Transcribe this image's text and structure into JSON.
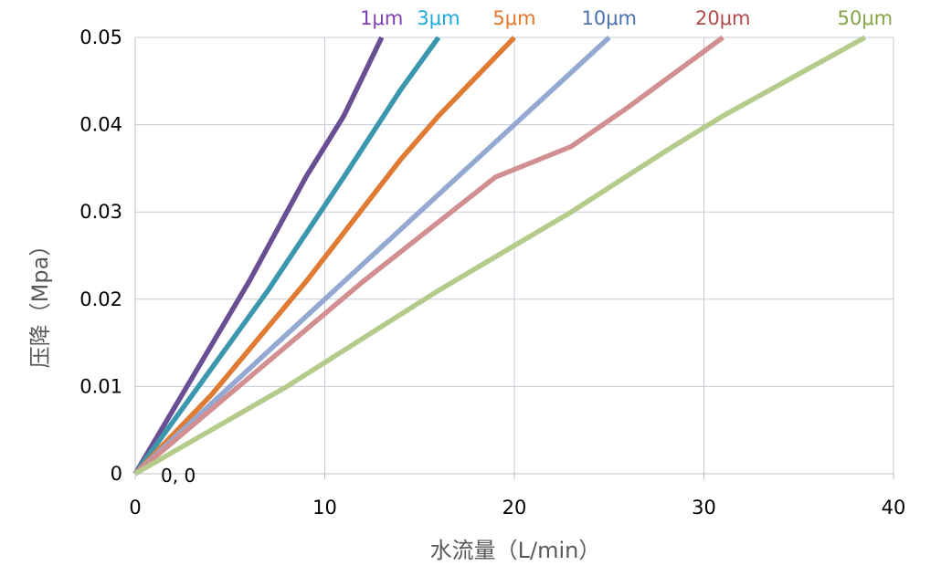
{
  "chart_data": {
    "type": "line",
    "title": "",
    "xlabel": "水流量（L/min）",
    "ylabel": "压降（Mpa）",
    "xlim": [
      0,
      40
    ],
    "ylim": [
      0,
      0.05
    ],
    "x_ticks": [
      "0",
      "10",
      "20",
      "30",
      "40"
    ],
    "y_ticks": [
      "0",
      "0.01",
      "0.02",
      "0.03",
      "0.04",
      "0.05"
    ],
    "grid": true,
    "annotation": "0, 0",
    "series": [
      {
        "name": "1μm",
        "color": "#6a4e93",
        "label_color": "#7f3fb5",
        "points": [
          [
            0,
            0
          ],
          [
            3,
            0.011
          ],
          [
            6,
            0.022
          ],
          [
            9,
            0.034
          ],
          [
            11,
            0.041
          ],
          [
            13,
            0.05
          ]
        ]
      },
      {
        "name": "3μm",
        "color": "#3a97ad",
        "label_color": "#1fa8e0",
        "points": [
          [
            0,
            0
          ],
          [
            3,
            0.009
          ],
          [
            7,
            0.021
          ],
          [
            11,
            0.034
          ],
          [
            14,
            0.044
          ],
          [
            16,
            0.05
          ]
        ]
      },
      {
        "name": "5μm",
        "color": "#e07b33",
        "label_color": "#e8762a",
        "points": [
          [
            0,
            0
          ],
          [
            4,
            0.009
          ],
          [
            9,
            0.022
          ],
          [
            14,
            0.036
          ],
          [
            16,
            0.041
          ],
          [
            20,
            0.05
          ]
        ]
      },
      {
        "name": "10μm",
        "color": "#93a9d2",
        "label_color": "#4a72ae",
        "points": [
          [
            0,
            0
          ],
          [
            5,
            0.01
          ],
          [
            10,
            0.02
          ],
          [
            15,
            0.03
          ],
          [
            20,
            0.04
          ],
          [
            25,
            0.05
          ]
        ]
      },
      {
        "name": "20μm",
        "color": "#d28f91",
        "label_color": "#b24a4a",
        "points": [
          [
            0,
            0
          ],
          [
            6,
            0.011
          ],
          [
            12,
            0.022
          ],
          [
            19,
            0.034
          ],
          [
            23,
            0.0375
          ],
          [
            26,
            0.042
          ],
          [
            31,
            0.05
          ]
        ]
      },
      {
        "name": "50μm",
        "color": "#b4cb8c",
        "label_color": "#84a646",
        "points": [
          [
            0,
            0
          ],
          [
            8,
            0.01
          ],
          [
            16,
            0.021
          ],
          [
            23,
            0.03
          ],
          [
            28,
            0.037
          ],
          [
            31,
            0.041
          ],
          [
            38.5,
            0.05
          ]
        ]
      }
    ]
  }
}
